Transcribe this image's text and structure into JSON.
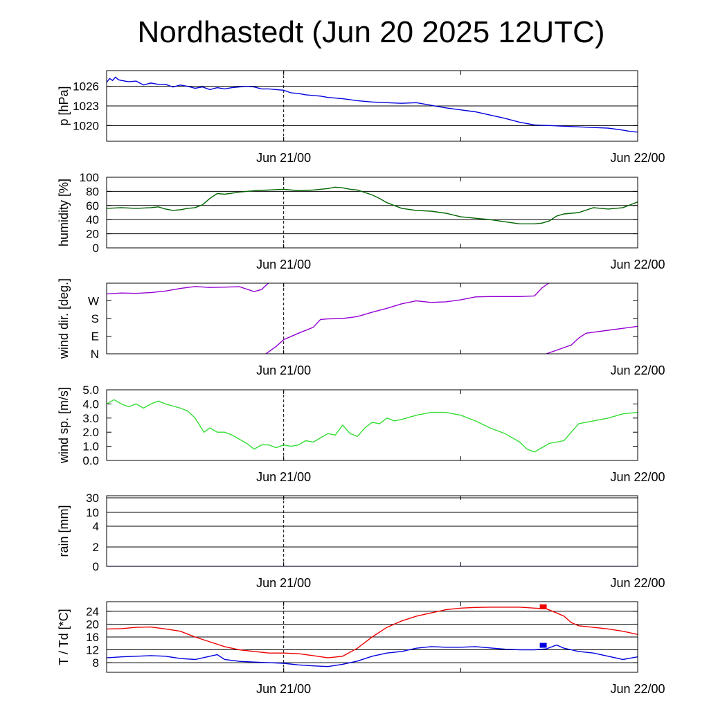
{
  "title": "Nordhastedt (Jun 20 2025 12UTC)",
  "chart_data": [
    {
      "id": "pressure",
      "type": "line",
      "ylabel": "p [hPa]",
      "ylim": [
        1017.6,
        1028.4
      ],
      "yticks": [
        1020,
        1023,
        1026
      ],
      "ytick_labels": [
        "1020",
        "1023",
        "1026"
      ],
      "gridlines": [
        1020,
        1023,
        1026
      ],
      "xlim": [
        0,
        36
      ],
      "xtick_labels": [
        {
          "x": 12,
          "label": "Jun 21/00"
        },
        {
          "x": 36,
          "label": "Jun 22/00"
        }
      ],
      "series": [
        {
          "color": "#0000dd",
          "x": [
            0,
            0.2,
            0.4,
            0.6,
            0.8,
            1.0,
            1.5,
            2,
            2.5,
            3,
            3.5,
            4,
            4.5,
            5,
            5.5,
            6,
            6.5,
            7,
            7.5,
            8,
            8.5,
            9,
            9.5,
            10,
            10.5,
            11,
            11.5,
            12,
            12.5,
            13,
            13.5,
            14,
            14.5,
            15,
            16,
            17,
            18,
            19,
            20,
            21,
            22,
            23,
            24,
            25,
            26,
            27,
            28,
            29,
            30,
            31,
            32,
            33,
            34,
            35,
            35.5,
            36
          ],
          "values": [
            1026.6,
            1027.2,
            1026.9,
            1027.4,
            1027.0,
            1026.9,
            1026.7,
            1026.8,
            1026.2,
            1026.5,
            1026.3,
            1026.3,
            1025.9,
            1026.2,
            1026.0,
            1025.7,
            1025.9,
            1025.5,
            1025.8,
            1025.6,
            1025.8,
            1025.9,
            1026.0,
            1025.9,
            1025.6,
            1025.6,
            1025.5,
            1025.4,
            1025.0,
            1024.9,
            1024.7,
            1024.6,
            1024.5,
            1024.3,
            1024.1,
            1023.8,
            1023.6,
            1023.5,
            1023.4,
            1023.5,
            1023.1,
            1022.7,
            1022.4,
            1022.1,
            1021.6,
            1021.1,
            1020.5,
            1020.1,
            1020.0,
            1019.9,
            1019.8,
            1019.7,
            1019.6,
            1019.3,
            1019.1,
            1019.0
          ]
        }
      ]
    },
    {
      "id": "humidity",
      "type": "line",
      "ylabel": "humidity [%]",
      "ylim": [
        0,
        100
      ],
      "yticks": [
        0,
        20,
        40,
        60,
        80,
        100
      ],
      "ytick_labels": [
        "0",
        "20",
        "40",
        "60",
        "80",
        "100"
      ],
      "gridlines": [
        20,
        40,
        60,
        80
      ],
      "xlim": [
        0,
        36
      ],
      "xtick_labels": [
        {
          "x": 12,
          "label": "Jun 21/00"
        },
        {
          "x": 36,
          "label": "Jun 22/00"
        }
      ],
      "series": [
        {
          "color": "#006400",
          "x": [
            0,
            1,
            2,
            3,
            3.5,
            4,
            4.5,
            5,
            5.5,
            6,
            6.5,
            7,
            7.5,
            8,
            9,
            10,
            11,
            12,
            13,
            14,
            15,
            15.5,
            16,
            16.5,
            17,
            18,
            18.5,
            19,
            20,
            21,
            22,
            23,
            24,
            25,
            26,
            27,
            28,
            29,
            29.5,
            30,
            30.5,
            31,
            32,
            33,
            34,
            35,
            36
          ],
          "values": [
            56,
            57,
            56,
            57,
            58,
            55,
            53,
            54,
            56,
            57,
            61,
            70,
            77,
            76,
            79,
            81,
            82,
            83,
            81,
            82,
            84,
            86,
            85,
            83,
            82,
            75,
            70,
            64,
            56,
            53,
            52,
            49,
            44,
            42,
            40,
            37,
            34,
            34,
            35,
            38,
            45,
            48,
            50,
            57,
            55,
            57,
            65
          ]
        }
      ]
    },
    {
      "id": "wind_direction",
      "type": "line",
      "ylabel": "wind dir. [deg.]",
      "ylim": [
        0,
        360
      ],
      "yticks": [
        0,
        90,
        180,
        270
      ],
      "ytick_labels": [
        "N",
        "E",
        "S",
        "W"
      ],
      "gridlines": [],
      "xlim": [
        0,
        36
      ],
      "xtick_labels": [
        {
          "x": 12,
          "label": "Jun 21/00"
        },
        {
          "x": 36,
          "label": "Jun 22/00"
        }
      ],
      "series": [
        {
          "color": "#9400d3",
          "x": [
            0,
            1,
            2,
            3,
            4,
            5,
            6,
            7,
            8,
            9,
            10,
            10.5,
            11.0
          ],
          "values": [
            305,
            310,
            308,
            312,
            320,
            333,
            343,
            338,
            340,
            342,
            317,
            328,
            362
          ]
        },
        {
          "color": "#9400d3",
          "x": [
            10.8,
            11.5,
            12,
            13,
            14,
            14.5,
            15,
            16,
            17,
            18,
            19,
            20,
            21,
            22,
            23,
            24,
            25,
            26,
            27,
            28,
            29,
            29.5,
            30
          ],
          "values": [
            0,
            38,
            72,
            105,
            135,
            175,
            178,
            180,
            190,
            212,
            232,
            255,
            270,
            262,
            265,
            275,
            290,
            292,
            292,
            292,
            295,
            335,
            362
          ]
        },
        {
          "color": "#9400d3",
          "x": [
            29.8,
            30.5,
            31.5,
            32,
            32.5,
            33,
            34,
            35,
            36
          ],
          "values": [
            0,
            18,
            45,
            80,
            105,
            110,
            120,
            130,
            140
          ]
        }
      ]
    },
    {
      "id": "wind_speed",
      "type": "line",
      "ylabel": "wind sp. [m/s]",
      "ylim": [
        0,
        5
      ],
      "yticks": [
        0,
        1,
        2,
        3,
        4,
        5
      ],
      "ytick_labels": [
        "0.0",
        "1.0",
        "2.0",
        "3.0",
        "4.0",
        "5.0"
      ],
      "gridlines": [],
      "xlim": [
        0,
        36
      ],
      "xtick_labels": [
        {
          "x": 12,
          "label": "Jun 21/00"
        },
        {
          "x": 36,
          "label": "Jun 22/00"
        }
      ],
      "series": [
        {
          "color": "#33dd33",
          "x": [
            0,
            0.5,
            1,
            1.5,
            2,
            2.5,
            3,
            3.5,
            4,
            5,
            5.5,
            6,
            6.3,
            6.6,
            7,
            7.5,
            8,
            8.5,
            9,
            9.5,
            10,
            10.5,
            11,
            11.5,
            12,
            12.5,
            13,
            13.5,
            14,
            14.5,
            15,
            15.5,
            16,
            16.5,
            17,
            17.5,
            18,
            18.5,
            19,
            19.5,
            20,
            21,
            22,
            23,
            24,
            25,
            26,
            27,
            28,
            28.5,
            29,
            29.5,
            30,
            31,
            31.5,
            32,
            32.5,
            33,
            34,
            35,
            36
          ],
          "values": [
            4.0,
            4.3,
            4.0,
            3.8,
            4.0,
            3.7,
            4.0,
            4.2,
            4.0,
            3.7,
            3.5,
            3.0,
            2.5,
            2.0,
            2.3,
            2.0,
            2.0,
            1.8,
            1.5,
            1.2,
            0.8,
            1.1,
            1.1,
            0.9,
            1.1,
            1.0,
            1.1,
            1.4,
            1.3,
            1.6,
            1.9,
            1.8,
            2.5,
            1.9,
            1.7,
            2.3,
            2.7,
            2.6,
            3.0,
            2.8,
            2.9,
            3.2,
            3.4,
            3.4,
            3.2,
            2.8,
            2.3,
            1.9,
            1.3,
            0.8,
            0.6,
            0.9,
            1.2,
            1.4,
            2.0,
            2.6,
            2.7,
            2.8,
            3.0,
            3.3,
            3.4
          ]
        }
      ]
    },
    {
      "id": "rain",
      "type": "line",
      "ylabel": "rain [mm]",
      "yticks": [
        0,
        2,
        4,
        10,
        30
      ],
      "ytick_labels": [
        "0",
        "2",
        "4",
        "10",
        "30"
      ],
      "gridlines": [
        2,
        4,
        10,
        30
      ],
      "scale": "nonlinear",
      "xlim": [
        0,
        36
      ],
      "xtick_labels": [
        {
          "x": 12,
          "label": "Jun 21/00"
        },
        {
          "x": 36,
          "label": "Jun 22/00"
        }
      ],
      "series": [
        {
          "color": "#0000dd",
          "x": [
            0,
            36
          ],
          "values": [
            0,
            0
          ]
        }
      ]
    },
    {
      "id": "temperature",
      "type": "line",
      "ylabel": "T / Td [*C]",
      "ylim": [
        5,
        27
      ],
      "yticks": [
        8,
        12,
        16,
        20,
        24
      ],
      "ytick_labels": [
        "8",
        "12",
        "16",
        "20",
        "24"
      ],
      "gridlines": [
        8,
        12,
        16,
        20,
        24
      ],
      "xlim": [
        0,
        36
      ],
      "xtick_labels": [
        {
          "x": 12,
          "label": "Jun 21/00"
        },
        {
          "x": 36,
          "label": "Jun 22/00"
        }
      ],
      "series": [
        {
          "color": "#ee0000",
          "x": [
            0,
            1,
            2,
            3,
            4,
            5,
            6,
            7,
            8,
            9,
            10,
            11,
            12,
            13,
            14,
            15,
            16,
            17,
            18,
            19,
            20,
            21,
            22,
            23,
            24,
            25,
            26,
            27,
            28,
            29,
            29.8,
            30.5,
            31,
            31.5,
            32,
            33,
            34,
            35,
            36
          ],
          "values": [
            18.5,
            18.6,
            19.0,
            19.1,
            18.5,
            17.8,
            16.0,
            14.5,
            13.0,
            12.0,
            11.5,
            11.0,
            11.0,
            10.8,
            10.2,
            9.5,
            10.0,
            12.5,
            16.0,
            19.0,
            21.0,
            22.5,
            23.5,
            24.5,
            25.0,
            25.2,
            25.3,
            25.3,
            25.3,
            25.0,
            24.8,
            23.5,
            22.5,
            20.5,
            19.5,
            19.0,
            18.5,
            17.8,
            16.8
          ]
        },
        {
          "color": "#0000dd",
          "x": [
            0,
            1,
            2,
            3,
            4,
            5,
            6,
            7,
            7.5,
            8,
            9,
            10,
            11,
            12,
            13,
            14,
            15,
            16,
            17,
            18,
            19,
            20,
            21,
            22,
            23,
            24,
            25,
            26,
            27,
            28,
            29,
            29.8,
            30.5,
            31,
            31.5,
            32,
            33,
            34,
            35,
            36
          ],
          "values": [
            9.5,
            9.8,
            10.0,
            10.2,
            10.0,
            9.3,
            9.0,
            10.0,
            10.5,
            9.0,
            8.4,
            8.2,
            8.0,
            7.8,
            7.3,
            7.0,
            6.8,
            7.5,
            8.5,
            10.0,
            11.0,
            11.5,
            12.5,
            13.0,
            12.8,
            12.8,
            13.0,
            12.6,
            12.2,
            12.0,
            12.0,
            12.3,
            13.5,
            12.5,
            12.0,
            11.5,
            11.0,
            10.0,
            9.0,
            9.8
          ]
        }
      ],
      "markers": [
        {
          "color": "#ee0000",
          "x": 29.55,
          "y": 25.3,
          "label": ""
        },
        {
          "color": "#0000dd",
          "x": 29.55,
          "y": 13.3,
          "label": ""
        }
      ]
    }
  ]
}
